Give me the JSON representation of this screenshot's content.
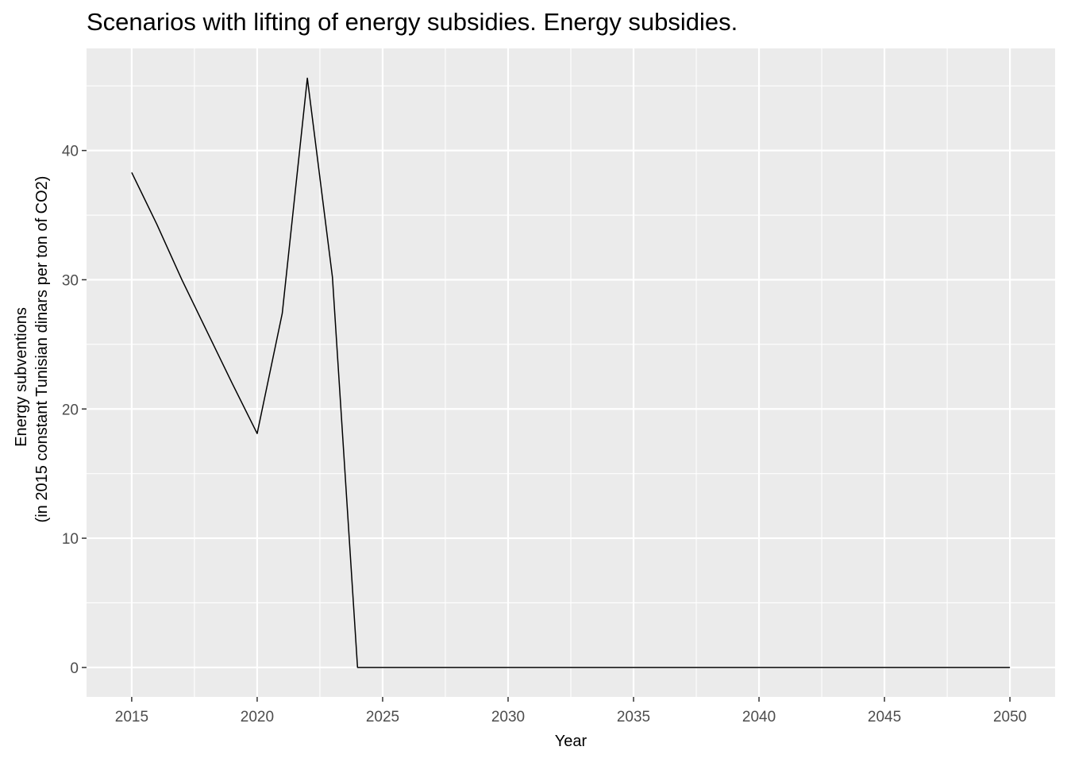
{
  "chart_data": {
    "type": "line",
    "title": "Scenarios with lifting of energy subsidies. Energy subsidies.",
    "xlabel": "Year",
    "ylabel_line1": "Energy subventions",
    "ylabel_line2": "(in 2015 constant Tunisian dinars per ton of CO2)",
    "xlim": [
      2013.2,
      2051.8
    ],
    "ylim": [
      -2.28,
      47.9
    ],
    "x_ticks": [
      2015,
      2020,
      2025,
      2030,
      2035,
      2040,
      2045,
      2050
    ],
    "x_tick_labels": [
      "2015",
      "2020",
      "2025",
      "2030",
      "2035",
      "2040",
      "2045",
      "2050"
    ],
    "y_ticks": [
      0,
      10,
      20,
      30,
      40
    ],
    "y_tick_labels": [
      "0",
      "10",
      "20",
      "30",
      "40"
    ],
    "grid": true,
    "background": "#ebebeb",
    "line_color": "#000000",
    "series": [
      {
        "x": [
          2015,
          2016,
          2017,
          2018,
          2019,
          2020,
          2021,
          2022,
          2023,
          2024,
          2025,
          2026,
          2027,
          2028,
          2029,
          2030,
          2031,
          2032,
          2033,
          2034,
          2035,
          2036,
          2037,
          2038,
          2039,
          2040,
          2041,
          2042,
          2043,
          2044,
          2045,
          2046,
          2047,
          2048,
          2049,
          2050
        ],
        "values": [
          38.3,
          34.3,
          30.0,
          26.0,
          22.0,
          18.1,
          27.4,
          45.6,
          30.2,
          0,
          0,
          0,
          0,
          0,
          0,
          0,
          0,
          0,
          0,
          0,
          0,
          0,
          0,
          0,
          0,
          0,
          0,
          0,
          0,
          0,
          0,
          0,
          0,
          0,
          0,
          0
        ]
      }
    ]
  }
}
